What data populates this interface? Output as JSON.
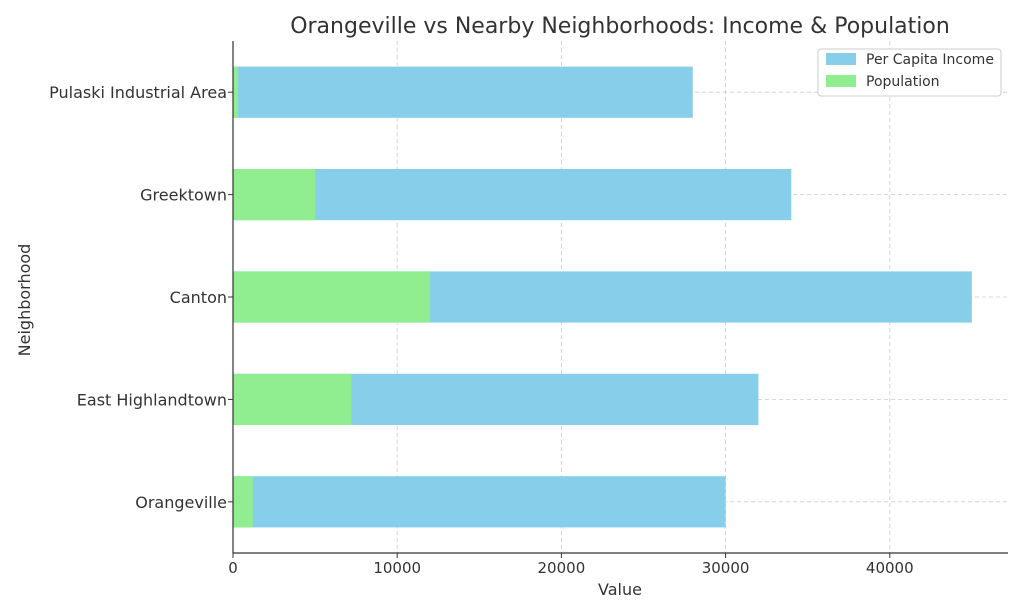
{
  "chart_data": {
    "type": "bar",
    "orientation": "horizontal",
    "stacked": false,
    "title": "Orangeville vs Nearby Neighborhoods: Income & Population",
    "xlabel": "Value",
    "ylabel": "Neighborhood",
    "categories": [
      "Orangeville",
      "East Highlandtown",
      "Canton",
      "Greektown",
      "Pulaski Industrial Area"
    ],
    "series": [
      {
        "name": "Per Capita Income",
        "color": "#87ceeb",
        "values": [
          30000,
          32000,
          45000,
          34000,
          28000
        ]
      },
      {
        "name": "Population",
        "color": "#90ee90",
        "values": [
          1200,
          7200,
          12000,
          5000,
          300
        ]
      }
    ],
    "xlim": [
      0,
      47200
    ],
    "xticks": [
      0,
      10000,
      20000,
      30000,
      40000
    ],
    "xtick_labels": [
      "0",
      "10000",
      "20000",
      "30000",
      "40000"
    ],
    "grid": true,
    "legend_position": "top-right"
  }
}
